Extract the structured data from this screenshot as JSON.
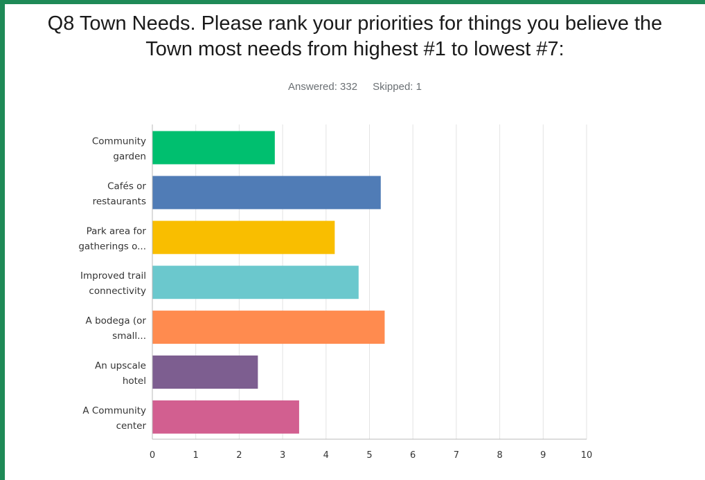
{
  "header": {
    "title_line1": "Q8 Town Needs. Please rank your priorities for things you believe the",
    "title_line2": "Town most needs from highest #1 to lowest #7:",
    "answered": "Answered: 332",
    "skipped": "Skipped: 1"
  },
  "colors": {
    "frame": "#1e8a57",
    "grid": "#e3e3e3",
    "axis": "#b8b8b8"
  },
  "chart_data": {
    "type": "bar",
    "orientation": "horizontal",
    "title": "Q8 Town Needs. Please rank your priorities for things you believe the Town most needs from highest #1 to lowest #7:",
    "xlabel": "",
    "ylabel": "",
    "xlim": [
      0,
      10
    ],
    "xticks": [
      0,
      1,
      2,
      3,
      4,
      5,
      6,
      7,
      8,
      9,
      10
    ],
    "grid": true,
    "categories": [
      [
        "Community",
        "garden"
      ],
      [
        "Cafés or",
        "restaurants"
      ],
      [
        "Park area for",
        "gatherings o..."
      ],
      [
        "Improved trail",
        "connectivity"
      ],
      [
        "A bodega (or",
        "small..."
      ],
      [
        "An upscale",
        "hotel"
      ],
      [
        "A Community",
        "center"
      ]
    ],
    "values": [
      2.82,
      5.26,
      4.2,
      4.75,
      5.35,
      2.43,
      3.38
    ],
    "bar_colors": [
      "#00bf6f",
      "#507cb6",
      "#f9be00",
      "#6bc8cd",
      "#ff8b4f",
      "#7d5e90",
      "#d25f90"
    ]
  }
}
